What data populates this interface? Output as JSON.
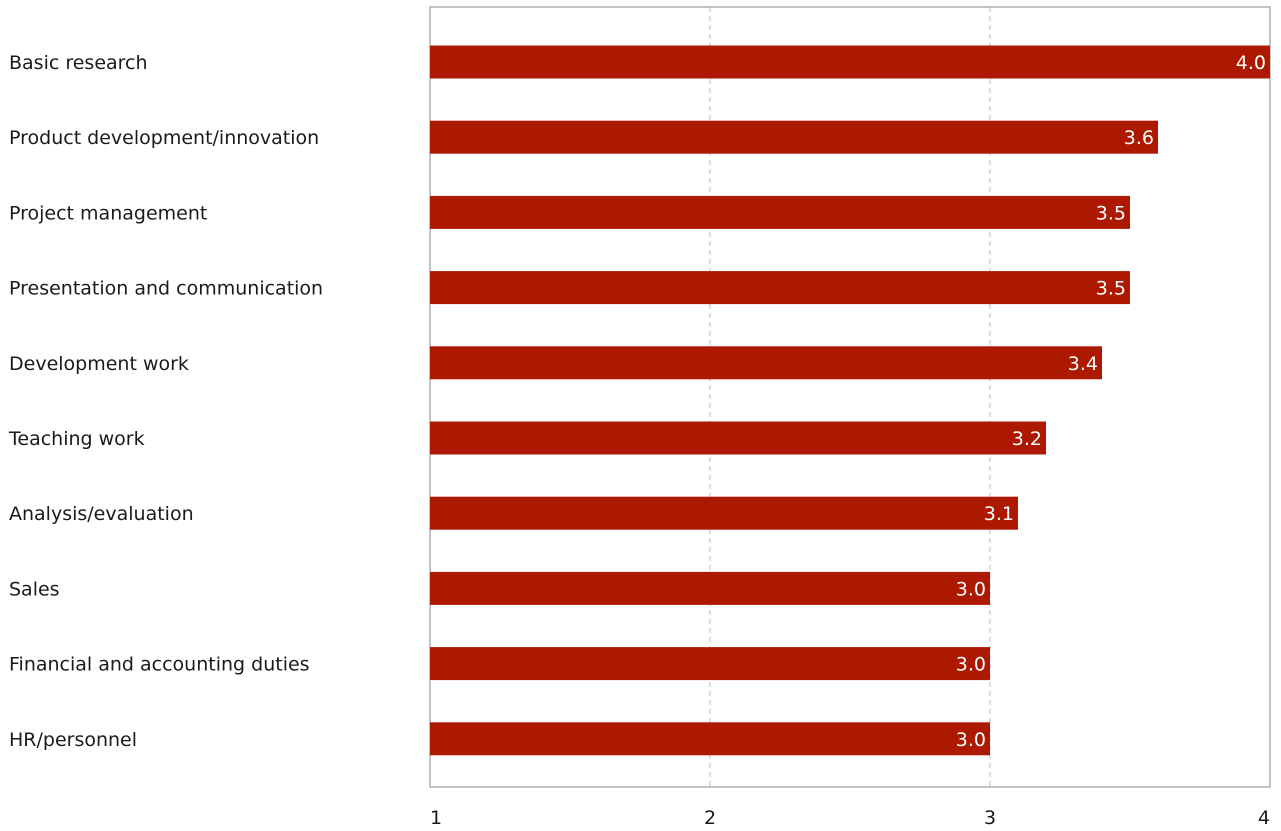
{
  "chart_data": {
    "type": "bar",
    "orientation": "horizontal",
    "title": "",
    "xlabel": "",
    "ylabel": "",
    "categories": [
      "Basic research",
      "Product development/innovation",
      "Project management",
      "Presentation and communication",
      "Development work",
      "Teaching work",
      "Analysis/evaluation",
      "Sales",
      "Financial and accounting duties",
      "HR/personnel"
    ],
    "values": [
      4.0,
      3.6,
      3.5,
      3.5,
      3.4,
      3.2,
      3.1,
      3.0,
      3.0,
      3.0
    ],
    "data_labels": [
      "4.0",
      "3.6",
      "3.5",
      "3.5",
      "3.4",
      "3.2",
      "3.1",
      "3.0",
      "3.0",
      "3.0"
    ],
    "xlim": [
      1,
      4
    ],
    "xticks": [
      1,
      2,
      3,
      4
    ],
    "xtick_labels": [
      "1",
      "2",
      "3",
      "4"
    ],
    "grid": "vertical dashed",
    "legend": "none",
    "colors": {
      "bar": "#ad1800",
      "grid": "#bbbbbb",
      "axis": "#888888",
      "text": "#1a1a1a",
      "data_label": "#ffffff"
    }
  }
}
